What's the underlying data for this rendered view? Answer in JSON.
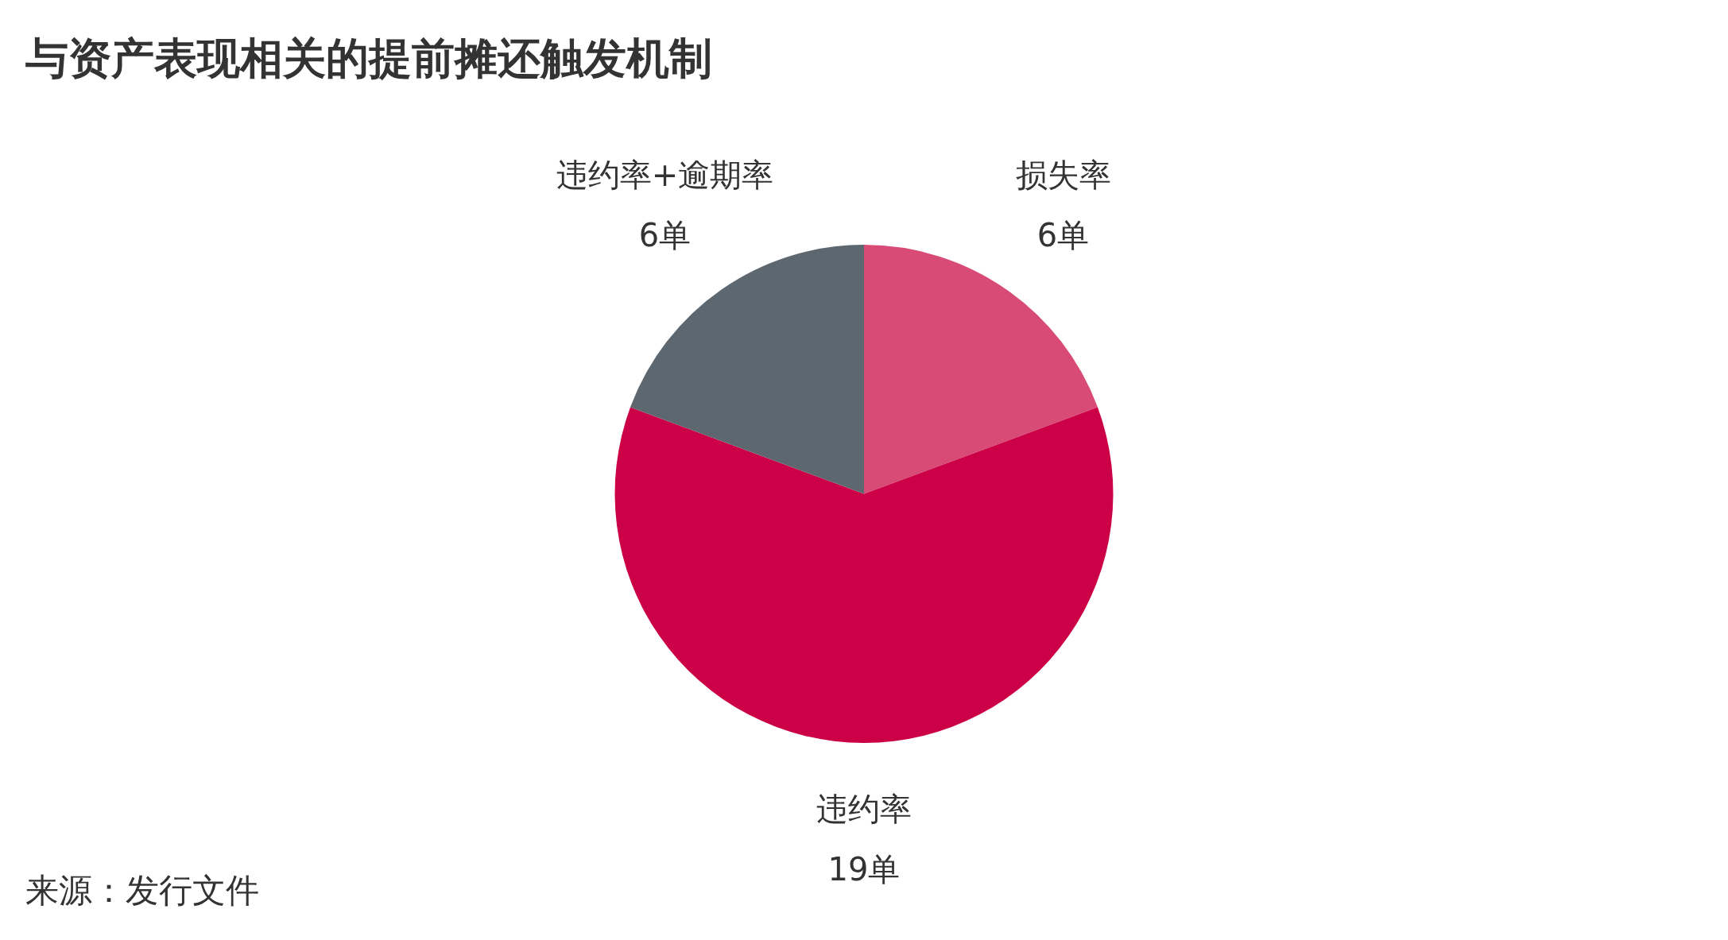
{
  "chart_data": {
    "type": "pie",
    "title": "与资产表现相关的提前摊还触发机制",
    "categories": [
      "损失率",
      "违约率",
      "违约率+逾期率"
    ],
    "values": [
      6,
      19,
      6
    ],
    "value_labels": [
      "6单",
      "19单",
      "6单"
    ],
    "colors": [
      "#d84b76",
      "#cc0046",
      "#5c6770"
    ],
    "annotations": [
      "来源：发行文件"
    ],
    "legend": false
  }
}
